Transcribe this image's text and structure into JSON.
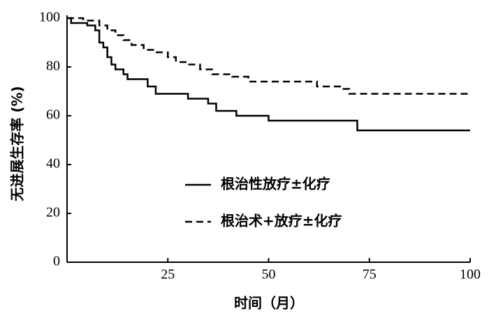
{
  "chart_data": {
    "type": "step",
    "x_label": "时间（月）",
    "y_label": "无进展生存率 (%)",
    "xlim": [
      0,
      100
    ],
    "ylim": [
      0,
      100
    ],
    "xticks": [
      25,
      50,
      75,
      100
    ],
    "yticks": [
      0,
      20,
      40,
      60,
      80,
      100
    ],
    "legend": "center-left",
    "series": [
      {
        "name": "根治性放疗±化疗",
        "color": "#000000",
        "dash": "solid",
        "x": [
          0,
          1,
          5,
          7,
          8,
          9,
          10,
          11,
          12,
          14,
          15,
          20,
          22,
          30,
          35,
          37,
          42,
          50,
          72,
          100
        ],
        "values": [
          100,
          98,
          97,
          95,
          90,
          88,
          84,
          81,
          79,
          77,
          75,
          72,
          69,
          67,
          65,
          62,
          60,
          58,
          54,
          54
        ]
      },
      {
        "name": "根治术+放疗±化疗",
        "color": "#000000",
        "dash": "dashed",
        "x": [
          0,
          4,
          8,
          10,
          12,
          14,
          16,
          19,
          22,
          25,
          27,
          30,
          33,
          36,
          41,
          45,
          62,
          68,
          70,
          100
        ],
        "values": [
          100,
          99,
          97,
          95,
          93,
          91,
          89,
          87,
          86,
          84,
          82,
          81,
          79,
          77,
          76,
          74,
          72,
          71,
          69,
          69
        ]
      }
    ]
  }
}
